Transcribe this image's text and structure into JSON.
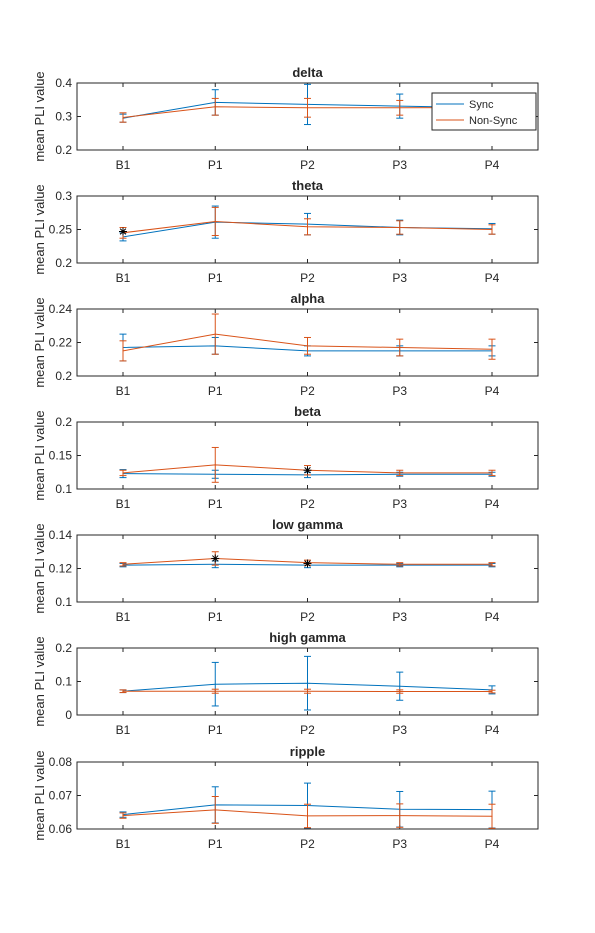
{
  "legend": {
    "placement": "top-right of first panel",
    "entries": [
      {
        "name": "Sync",
        "color": "#0072BD"
      },
      {
        "name": "Non-Sync",
        "color": "#D95319"
      }
    ]
  },
  "chart_data": [
    {
      "type": "line",
      "title": "delta",
      "ylabel": "mean PLI value",
      "xlabel": "",
      "categories": [
        "B1",
        "P1",
        "P2",
        "P3",
        "P4"
      ],
      "ylim": [
        0.2,
        0.4
      ],
      "yticks": [
        "0.2",
        "0.3",
        "0.4"
      ],
      "series": [
        {
          "name": "Sync",
          "color": "#0072BD",
          "values": [
            0.295,
            0.342,
            0.336,
            0.331,
            0.326
          ],
          "err": [
            0.012,
            0.038,
            0.06,
            0.036,
            0.025
          ]
        },
        {
          "name": "Non-Sync",
          "color": "#D95319",
          "values": [
            0.297,
            0.329,
            0.326,
            0.326,
            0.327
          ],
          "err": [
            0.014,
            0.025,
            0.028,
            0.022,
            0.018
          ]
        }
      ],
      "markers": []
    },
    {
      "type": "line",
      "title": "theta",
      "ylabel": "mean PLI value",
      "xlabel": "",
      "categories": [
        "B1",
        "P1",
        "P2",
        "P3",
        "P4"
      ],
      "ylim": [
        0.2,
        0.3
      ],
      "yticks": [
        "0.2",
        "0.25",
        "0.3"
      ],
      "series": [
        {
          "name": "Sync",
          "color": "#0072BD",
          "values": [
            0.239,
            0.261,
            0.258,
            0.253,
            0.251
          ],
          "err": [
            0.006,
            0.024,
            0.016,
            0.011,
            0.008
          ]
        },
        {
          "name": "Non-Sync",
          "color": "#D95319",
          "values": [
            0.245,
            0.262,
            0.254,
            0.253,
            0.25
          ],
          "err": [
            0.008,
            0.021,
            0.012,
            0.01,
            0.007
          ]
        }
      ],
      "markers": [
        {
          "category": "B1",
          "value": 0.247
        }
      ]
    },
    {
      "type": "line",
      "title": "alpha",
      "ylabel": "mean PLI value",
      "xlabel": "",
      "categories": [
        "B1",
        "P1",
        "P2",
        "P3",
        "P4"
      ],
      "ylim": [
        0.2,
        0.24
      ],
      "yticks": [
        "0.2",
        "0.22",
        "0.24"
      ],
      "series": [
        {
          "name": "Sync",
          "color": "#0072BD",
          "values": [
            0.217,
            0.218,
            0.215,
            0.215,
            0.215
          ],
          "err": [
            0.008,
            0.005,
            0.003,
            0.003,
            0.003
          ]
        },
        {
          "name": "Non-Sync",
          "color": "#D95319",
          "values": [
            0.215,
            0.225,
            0.218,
            0.217,
            0.216
          ],
          "err": [
            0.006,
            0.012,
            0.005,
            0.005,
            0.006
          ]
        }
      ],
      "markers": []
    },
    {
      "type": "line",
      "title": "beta",
      "ylabel": "mean PLI value",
      "xlabel": "",
      "categories": [
        "B1",
        "P1",
        "P2",
        "P3",
        "P4"
      ],
      "ylim": [
        0.1,
        0.2
      ],
      "yticks": [
        "0.1",
        "0.15",
        "0.2"
      ],
      "series": [
        {
          "name": "Sync",
          "color": "#0072BD",
          "values": [
            0.123,
            0.122,
            0.121,
            0.122,
            0.122
          ],
          "err": [
            0.006,
            0.006,
            0.004,
            0.003,
            0.003
          ]
        },
        {
          "name": "Non-Sync",
          "color": "#D95319",
          "values": [
            0.124,
            0.136,
            0.128,
            0.124,
            0.124
          ],
          "err": [
            0.004,
            0.026,
            0.007,
            0.004,
            0.004
          ]
        }
      ],
      "markers": [
        {
          "category": "P2",
          "value": 0.128
        }
      ]
    },
    {
      "type": "line",
      "title": "low gamma",
      "ylabel": "mean PLI value",
      "xlabel": "",
      "categories": [
        "B1",
        "P1",
        "P2",
        "P3",
        "P4"
      ],
      "ylim": [
        0.1,
        0.14
      ],
      "yticks": [
        "0.1",
        "0.12",
        "0.14"
      ],
      "series": [
        {
          "name": "Sync",
          "color": "#0072BD",
          "values": [
            0.122,
            0.1225,
            0.122,
            0.122,
            0.122
          ],
          "err": [
            0.001,
            0.002,
            0.0015,
            0.001,
            0.001
          ]
        },
        {
          "name": "Non-Sync",
          "color": "#D95319",
          "values": [
            0.1225,
            0.126,
            0.1235,
            0.1225,
            0.1225
          ],
          "err": [
            0.001,
            0.004,
            0.0015,
            0.001,
            0.001
          ]
        }
      ],
      "markers": [
        {
          "category": "P1",
          "value": 0.126
        },
        {
          "category": "P2",
          "value": 0.123
        }
      ]
    },
    {
      "type": "line",
      "title": "high gamma",
      "ylabel": "mean PLI value",
      "xlabel": "",
      "categories": [
        "B1",
        "P1",
        "P2",
        "P3",
        "P4"
      ],
      "ylim": [
        0,
        0.2
      ],
      "yticks": [
        "0",
        "0.1",
        "0.2"
      ],
      "series": [
        {
          "name": "Sync",
          "color": "#0072BD",
          "values": [
            0.071,
            0.092,
            0.095,
            0.086,
            0.075
          ],
          "err": [
            0.004,
            0.065,
            0.08,
            0.042,
            0.012
          ]
        },
        {
          "name": "Non-Sync",
          "color": "#D95319",
          "values": [
            0.071,
            0.071,
            0.071,
            0.07,
            0.07
          ],
          "err": [
            0.004,
            0.006,
            0.006,
            0.005,
            0.004
          ]
        }
      ],
      "markers": []
    },
    {
      "type": "line",
      "title": "ripple",
      "ylabel": "mean PLI value",
      "xlabel": "",
      "categories": [
        "B1",
        "P1",
        "P2",
        "P3",
        "P4"
      ],
      "ylim": [
        0.06,
        0.08
      ],
      "yticks": [
        "0.06",
        "0.07",
        "0.08"
      ],
      "series": [
        {
          "name": "Sync",
          "color": "#0072BD",
          "values": [
            0.0643,
            0.0672,
            0.067,
            0.0659,
            0.0658
          ],
          "err": [
            0.0008,
            0.0054,
            0.0067,
            0.0053,
            0.0055
          ]
        },
        {
          "name": "Non-Sync",
          "color": "#D95319",
          "values": [
            0.064,
            0.0657,
            0.0639,
            0.064,
            0.0638
          ],
          "err": [
            0.0008,
            0.004,
            0.0035,
            0.0035,
            0.0036
          ]
        }
      ],
      "markers": []
    }
  ]
}
